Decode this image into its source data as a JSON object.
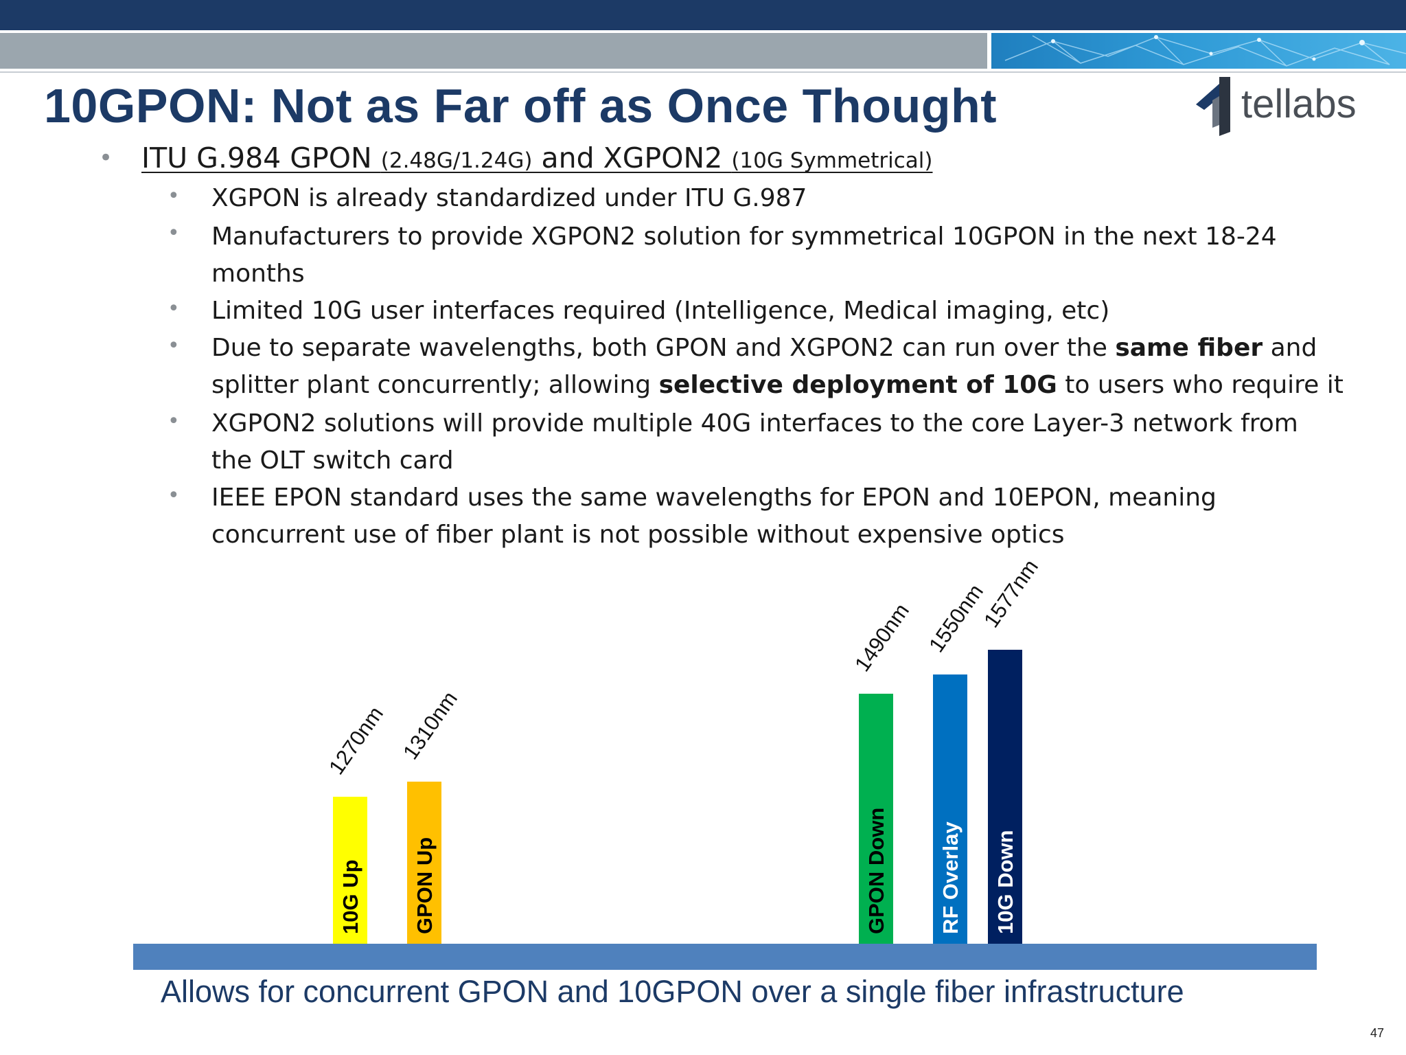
{
  "slide": {
    "title": "10GPON: Not as Far off as Once Thought",
    "logo_text": "tellabs",
    "page_number": "47",
    "colors": {
      "title": "#1c3a66",
      "top_band": "#1c3a66",
      "grey_band": "#9ba6ae"
    }
  },
  "bullet_main": {
    "part1": "ITU G.984 GPON ",
    "part2": "(2.48G/1.24G)",
    "part3": " and XGPON2 ",
    "part4": "(10G Symmetrical)"
  },
  "sub_bullets": {
    "s1": "XGPON is already standardized under ITU G.987",
    "s2_line1": "Manufacturers to provide XGPON2 solution for symmetrical 10GPON in the next 18-24",
    "s2_line2": "months",
    "s3": "Limited 10G user interfaces required (Intelligence, Medical imaging, etc)",
    "s4_a": "Due to separate wavelengths, both GPON and XGPON2 can run over the ",
    "s4_b": "same fiber",
    "s4_c": " and",
    "s4_d": "splitter plant concurrently; allowing ",
    "s4_e": "selective deployment of 10G",
    "s4_f": " to users who require it",
    "s5_line1": "XGPON2 solutions will provide multiple 40G interfaces to the core Layer-3 network from",
    "s5_line2": "the OLT switch card",
    "s6_line1": "IEEE EPON standard uses the same wavelengths for EPON and 10EPON, meaning",
    "s6_line2": "concurrent use of fiber plant is not possible without expensive optics"
  },
  "chart_data": {
    "type": "bar",
    "categories": [
      "1270nm",
      "1310nm",
      "1490nm",
      "1550nm",
      "1577nm"
    ],
    "bar_labels": [
      "10G Up",
      "GPON Up",
      "GPON Down",
      "RF Overlay",
      "10G Down"
    ],
    "colors": [
      "#ffff00",
      "#ffc000",
      "#00b050",
      "#0070c0",
      "#002060"
    ],
    "label_colors": [
      "#000000",
      "#000000",
      "#000000",
      "#ffffff",
      "#ffffff"
    ],
    "baseline_color": "#4f81bd",
    "caption": "Allows for concurrent GPON and 10GPON over a single fiber infrastructure"
  }
}
